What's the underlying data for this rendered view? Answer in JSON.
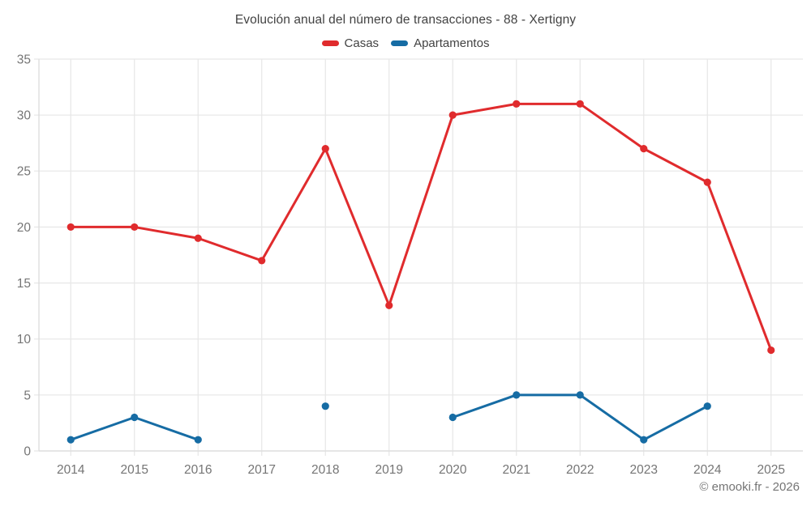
{
  "chart": {
    "title": "Evolución anual del número de transacciones - 88 - Xertigny"
  },
  "chart_data": {
    "type": "line",
    "title": "Evolución anual del número de transacciones - 88 - Xertigny",
    "categories": [
      "2014",
      "2015",
      "2016",
      "2017",
      "2018",
      "2019",
      "2020",
      "2021",
      "2022",
      "2023",
      "2024",
      "2025"
    ],
    "series": [
      {
        "name": "Casas",
        "color": "#e02b2d",
        "values": [
          20,
          20,
          19,
          17,
          27,
          13,
          30,
          31,
          31,
          27,
          24,
          9
        ]
      },
      {
        "name": "Apartamentos",
        "color": "#166ca4",
        "values": [
          1,
          3,
          1,
          null,
          4,
          null,
          3,
          5,
          5,
          1,
          4,
          null
        ]
      }
    ],
    "xlabel": "",
    "ylabel": "",
    "ylim": [
      0,
      35
    ],
    "y_ticks": [
      0,
      5,
      10,
      15,
      20,
      25,
      30,
      35
    ],
    "grid": true,
    "legend_position": "top"
  },
  "footer": {
    "copyright": "© emooki.fr - 2026"
  },
  "colors": {
    "grid": "#e8e8e8",
    "axis_border": "#dcdcdc",
    "axis_text": "#757575",
    "title_text": "#424242"
  }
}
